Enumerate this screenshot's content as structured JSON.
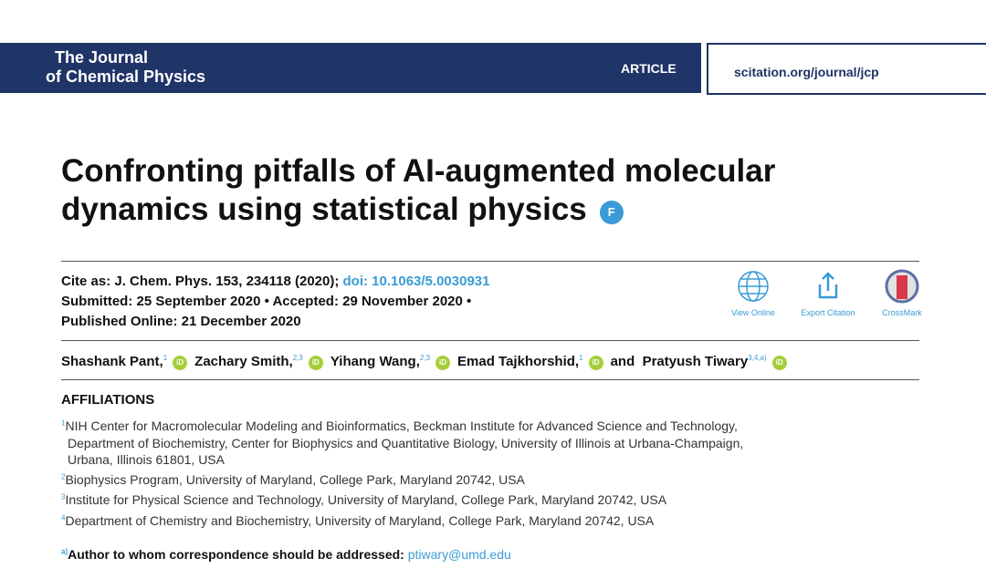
{
  "header": {
    "journal": [
      "The Journal",
      "of Chemical Physics"
    ],
    "article_type": "ARTICLE",
    "url": "scitation.org/journal/jcp"
  },
  "title": [
    "Confronting pitfalls of AI-augmented molecular",
    "dynamics using statistical physics"
  ],
  "title_badge": "F",
  "citation": {
    "cite": "Cite as: J. Chem. Phys. 153, 234118 (2020);",
    "doi": "doi: 10.1063/5.0030931",
    "dates": "Submitted: 25 September 2020 • Accepted: 29 November 2020 •",
    "published": "Published Online: 21 December 2020"
  },
  "tools": [
    "View Online",
    "Export Citation",
    "CrossMark"
  ],
  "orcid": "iD",
  "authors": [
    {
      "name": "Shashank Pant,",
      "sup": "1"
    },
    {
      "name": "Zachary Smith,",
      "sup": "2,3"
    },
    {
      "name": "Yihang Wang,",
      "sup": "2,3"
    },
    {
      "name": "Emad Tajkhorshid,",
      "sup": "1"
    },
    {
      "name": "Pratyush Tiwary",
      "sup": "3,4,a)"
    }
  ],
  "and": "and",
  "affiliations": {
    "heading": "AFFILIATIONS",
    "items": [
      {
        "mark": "1",
        "lines": [
          "NIH Center for Macromolecular Modeling and Bioinformatics, Beckman Institute for Advanced Science and Technology,",
          "Department of Biochemistry, Center for Biophysics and Quantitative Biology, University of Illinois at Urbana-Champaign,",
          "Urbana, Illinois 61801, USA"
        ]
      },
      {
        "mark": "2",
        "lines": [
          "Biophysics Program, University of Maryland, College Park, Maryland 20742, USA"
        ]
      },
      {
        "mark": "3",
        "lines": [
          "Institute for Physical Science and Technology, University of Maryland, College Park, Maryland 20742, USA"
        ]
      },
      {
        "mark": "4",
        "lines": [
          "Department of Chemistry and Biochemistry, University of Maryland, College Park, Maryland 20742, USA"
        ]
      }
    ]
  },
  "correspondence": {
    "mark": "a)",
    "label": "Author to whom correspondence should be addressed:",
    "email": "ptiwary@umd.edu"
  }
}
